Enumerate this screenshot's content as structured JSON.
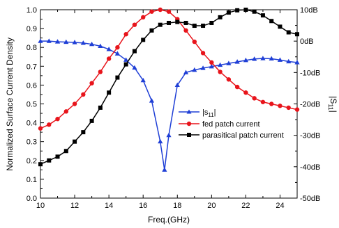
{
  "chart_data": {
    "type": "line",
    "xlabel": "Freq.(GHz)",
    "ylabel_left": "Normalized Surface Current Density",
    "ylabel_right": "|S11|",
    "xlim": [
      10,
      25
    ],
    "ylim_left": [
      0.0,
      1.0
    ],
    "ylim_right": [
      -50,
      10
    ],
    "x_ticks": [
      "10",
      "12",
      "14",
      "16",
      "18",
      "20",
      "22",
      "24"
    ],
    "y_left_ticks": [
      "0.0",
      "0.1",
      "0.2",
      "0.3",
      "0.4",
      "0.5",
      "0.6",
      "0.7",
      "0.8",
      "0.9",
      "1.0"
    ],
    "y_right_ticks": [
      "-50dB",
      "-40dB",
      "-30dB",
      "-20dB",
      "-10dB",
      "0dB",
      "10dB"
    ],
    "legend_position": "center-right",
    "series": [
      {
        "name": "|s11|",
        "legend_main": "|s",
        "legend_sub": "11",
        "legend_end": "|",
        "axis": "right",
        "color": "#1f3fd6",
        "marker": "triangle",
        "x": [
          10,
          10.5,
          11,
          11.5,
          12,
          12.5,
          13,
          13.5,
          14,
          14.5,
          15,
          15.5,
          16,
          16.5,
          17,
          17.25,
          17.5,
          18,
          18.5,
          19,
          19.5,
          20,
          20.5,
          21,
          21.5,
          22,
          22.5,
          23,
          23.5,
          24,
          24.5,
          25
        ],
        "y": [
          0,
          0,
          -0.2,
          -0.3,
          -0.4,
          -0.6,
          -1.0,
          -1.6,
          -2.6,
          -4.0,
          -6.0,
          -8.5,
          -12.5,
          -19,
          -32,
          -41,
          -30,
          -14,
          -10,
          -9.2,
          -8.6,
          -8.1,
          -7.6,
          -7.1,
          -6.6,
          -6.1,
          -5.7,
          -5.5,
          -5.6,
          -6.0,
          -6.5,
          -6.8
        ]
      },
      {
        "name": "fed patch current",
        "axis": "left",
        "color": "#e8141b",
        "marker": "circle",
        "x": [
          10,
          10.5,
          11,
          11.5,
          12,
          12.5,
          13,
          13.5,
          14,
          14.5,
          15,
          15.5,
          16,
          16.5,
          17,
          17.5,
          18,
          18.5,
          19,
          19.5,
          20,
          20.5,
          21,
          21.5,
          22,
          22.5,
          23,
          23.5,
          24,
          24.5,
          25
        ],
        "y": [
          0.37,
          0.39,
          0.42,
          0.46,
          0.5,
          0.55,
          0.61,
          0.67,
          0.74,
          0.8,
          0.87,
          0.92,
          0.96,
          0.99,
          1.0,
          0.99,
          0.95,
          0.89,
          0.83,
          0.77,
          0.72,
          0.67,
          0.63,
          0.59,
          0.56,
          0.53,
          0.51,
          0.5,
          0.49,
          0.48,
          0.47
        ]
      },
      {
        "name": "parasitical patch current",
        "axis": "left",
        "color": "#000000",
        "marker": "square",
        "x": [
          10,
          10.5,
          11,
          11.5,
          12,
          12.5,
          13,
          13.5,
          14,
          14.5,
          15,
          15.5,
          16,
          16.5,
          17,
          17.5,
          18,
          18.5,
          19,
          19.5,
          20,
          20.5,
          21,
          21.5,
          22,
          22.5,
          23,
          23.5,
          24,
          24.5,
          25
        ],
        "y": [
          0.18,
          0.2,
          0.22,
          0.25,
          0.3,
          0.35,
          0.41,
          0.48,
          0.56,
          0.64,
          0.71,
          0.78,
          0.84,
          0.89,
          0.92,
          0.93,
          0.935,
          0.93,
          0.915,
          0.915,
          0.93,
          0.96,
          0.985,
          0.997,
          1.0,
          0.99,
          0.97,
          0.94,
          0.91,
          0.88,
          0.87
        ]
      }
    ]
  }
}
